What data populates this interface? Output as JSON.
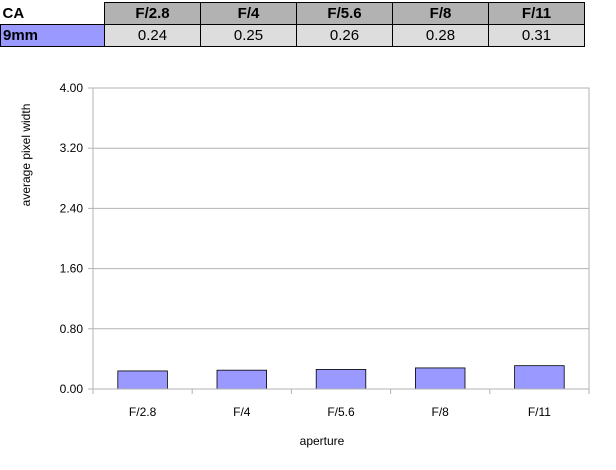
{
  "table": {
    "title": "CA",
    "row_label": "9mm",
    "headers": [
      "F/2.8",
      "F/4",
      "F/5.6",
      "F/8",
      "F/11"
    ],
    "values": [
      "0.24",
      "0.25",
      "0.26",
      "0.28",
      "0.31"
    ]
  },
  "chart_data": {
    "type": "bar",
    "categories": [
      "F/2.8",
      "F/4",
      "F/5.6",
      "F/8",
      "F/11"
    ],
    "series": [
      {
        "values": [
          0.24,
          0.25,
          0.26,
          0.28,
          0.31
        ]
      }
    ],
    "xlabel": "aperture",
    "ylabel": "average pixel width",
    "ylim": [
      0,
      4
    ],
    "yticks": [
      "0.00",
      "0.80",
      "1.60",
      "2.40",
      "3.20",
      "4.00"
    ],
    "grid": true,
    "legend": "none",
    "bar_color": "#9999ff"
  }
}
